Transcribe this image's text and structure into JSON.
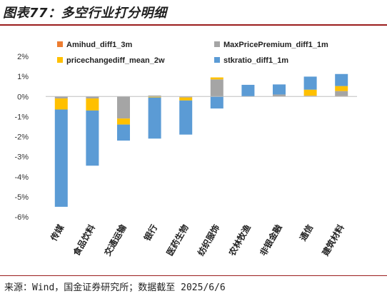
{
  "title": "图表77：多空行业打分明细",
  "source": "来源：Wind，国金证券研究所；数据截至 2025/6/6",
  "colors": {
    "Amihud_diff1_3m": "#ED7D31",
    "MaxPricePremium_diff1_1m": "#A5A5A5",
    "pricechangediff_mean_2w": "#FFC000",
    "stkratio_diff1_1m": "#5B9BD5"
  },
  "chart_data": {
    "type": "bar",
    "stacked": true,
    "categories": [
      "传媒",
      "食品饮料",
      "交通运输",
      "银行",
      "医药生物",
      "纺织服饰",
      "农林牧渔",
      "非银金融",
      "通信",
      "建筑材料"
    ],
    "series": [
      {
        "name": "Amihud_diff1_3m",
        "values": [
          0.0,
          0.0,
          0.0,
          0.0,
          0.0,
          0.0,
          0.0,
          0.0,
          0.02,
          0.02
        ]
      },
      {
        "name": "MaxPricePremium_diff1_1m",
        "values": [
          -0.1,
          -0.1,
          -1.1,
          0.05,
          -0.05,
          0.85,
          0.0,
          0.1,
          0.02,
          0.25
        ]
      },
      {
        "name": "pricechangediff_mean_2w",
        "values": [
          -0.55,
          -0.6,
          -0.3,
          -0.05,
          -0.15,
          0.1,
          0.0,
          0.0,
          0.3,
          0.25
        ]
      },
      {
        "name": "stkratio_diff1_1m",
        "values": [
          -4.85,
          -2.75,
          -0.8,
          -2.05,
          -1.7,
          -0.6,
          0.58,
          0.5,
          0.65,
          0.6
        ]
      }
    ],
    "legend_order": [
      "Amihud_diff1_3m",
      "MaxPricePremium_diff1_1m",
      "pricechangediff_mean_2w",
      "stkratio_diff1_1m"
    ],
    "y_ticks": [
      "2%",
      "1%",
      "0%",
      "-1%",
      "-2%",
      "-3%",
      "-4%",
      "-5%",
      "-6%"
    ],
    "y_tick_values": [
      2,
      1,
      0,
      -1,
      -2,
      -3,
      -4,
      -5,
      -6
    ],
    "ylim": [
      -6,
      2
    ],
    "legend_position": "top",
    "grid": false
  }
}
